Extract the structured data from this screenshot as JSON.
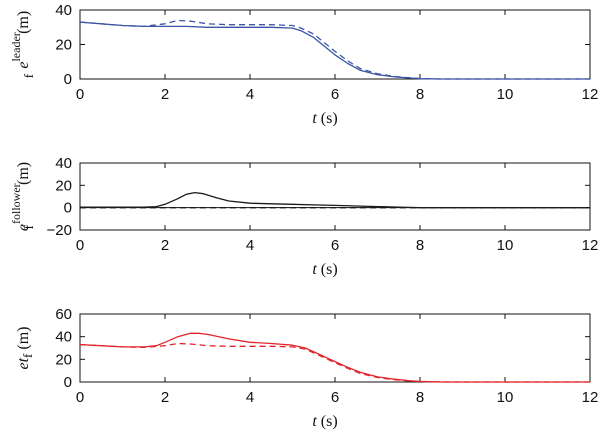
{
  "chart_data": [
    {
      "type": "line",
      "xlabel_var": "t",
      "xlabel_unit": "(s)",
      "ylabel_var": "e",
      "ylabel_sub": "f",
      "ylabel_sup": "leader",
      "ylabel_unit": "(m)",
      "xlim": [
        0,
        12
      ],
      "ylim": [
        0,
        40
      ],
      "xticks": [
        0,
        2,
        4,
        6,
        8,
        10,
        12
      ],
      "yticks": [
        0,
        20,
        40
      ],
      "series": [
        {
          "color": "#3c55a5",
          "dash": false,
          "x": [
            0,
            0.5,
            1,
            1.5,
            2,
            2.5,
            3,
            3.5,
            4,
            4.5,
            5,
            5.2,
            5.5,
            5.8,
            6,
            6.3,
            6.6,
            7,
            7.4,
            7.8,
            8,
            8.5,
            9,
            10,
            11,
            12
          ],
          "y": [
            33,
            32,
            31,
            30.5,
            30.5,
            30.5,
            30,
            30,
            30,
            30,
            29.5,
            28,
            24,
            18,
            14,
            9,
            5,
            2.5,
            1.2,
            0.5,
            0.2,
            0,
            0,
            0,
            0,
            0
          ]
        },
        {
          "color": "#3c55a5",
          "dash": true,
          "x": [
            0,
            0.5,
            1,
            1.5,
            2,
            2.3,
            2.6,
            3,
            3.5,
            4,
            4.5,
            5,
            5.2,
            5.5,
            5.8,
            6,
            6.3,
            6.6,
            7,
            7.4,
            7.8,
            8,
            8.5,
            9,
            10,
            11,
            12
          ],
          "y": [
            33,
            32,
            31,
            30.5,
            32,
            34,
            33.5,
            32,
            31.5,
            31.5,
            31.5,
            31,
            29.5,
            26,
            20,
            16,
            10.5,
            6,
            3,
            1.5,
            0.6,
            0.3,
            0,
            0,
            0,
            0,
            0
          ]
        }
      ]
    },
    {
      "type": "line",
      "xlabel_var": "t",
      "xlabel_unit": "(s)",
      "ylabel_var": "e",
      "ylabel_sub": "f",
      "ylabel_sup": "follower",
      "ylabel_unit": "(m)",
      "xlim": [
        0,
        12
      ],
      "ylim": [
        -20,
        40
      ],
      "xticks": [
        0,
        2,
        4,
        6,
        8,
        10,
        12
      ],
      "yticks": [
        -20,
        0,
        20,
        40
      ],
      "series": [
        {
          "color": "#1a1a1a",
          "dash": false,
          "x": [
            0,
            1,
            1.5,
            1.8,
            2,
            2.3,
            2.5,
            2.7,
            2.9,
            3.2,
            3.5,
            4,
            4.5,
            5,
            5.5,
            6,
            6.5,
            7,
            7.5,
            8,
            9,
            10,
            11,
            12
          ],
          "y": [
            0.5,
            0.5,
            0.5,
            1,
            3,
            8,
            12,
            13.5,
            12.5,
            9,
            6,
            4,
            3.5,
            3,
            2.5,
            2,
            1.5,
            1,
            0.5,
            0,
            0,
            0,
            0,
            0
          ]
        },
        {
          "color": "#1a1a1a",
          "dash": true,
          "x": [
            0,
            2,
            4,
            6,
            8,
            10,
            12
          ],
          "y": [
            0,
            0,
            0,
            0,
            0,
            0,
            0
          ]
        }
      ]
    },
    {
      "type": "line",
      "xlabel_var": "t",
      "xlabel_unit": "(s)",
      "ylabel_var": "e",
      "ylabel_sub": "f",
      "ylabel_unit": "(m)",
      "xlim": [
        0,
        12
      ],
      "ylim": [
        0,
        60
      ],
      "xticks": [
        0,
        2,
        4,
        6,
        8,
        10,
        12
      ],
      "yticks": [
        0,
        20,
        40,
        60
      ],
      "series": [
        {
          "color": "#e3242b",
          "dash": false,
          "x": [
            0,
            0.5,
            1,
            1.5,
            1.8,
            2,
            2.3,
            2.6,
            2.8,
            3,
            3.5,
            4,
            4.5,
            5,
            5.3,
            5.6,
            6,
            6.3,
            6.6,
            7,
            7.4,
            7.8,
            8,
            8.5,
            9,
            10,
            11,
            12
          ],
          "y": [
            33,
            32,
            31,
            31,
            32,
            35,
            40,
            43,
            43,
            42,
            38,
            35,
            34,
            32.5,
            30,
            25,
            18,
            13,
            8.5,
            4.5,
            2.5,
            1,
            0.5,
            0,
            0,
            0,
            0,
            0
          ]
        },
        {
          "color": "#e3242b",
          "dash": true,
          "x": [
            0,
            0.5,
            1,
            1.5,
            2,
            2.3,
            2.6,
            3,
            3.5,
            4,
            4.5,
            5,
            5.3,
            5.6,
            6,
            6.3,
            6.6,
            7,
            7.4,
            7.8,
            8,
            8.5,
            9,
            10,
            11,
            12
          ],
          "y": [
            33,
            32,
            31,
            30.5,
            32,
            34,
            33.5,
            32,
            31.5,
            31.5,
            31.5,
            31,
            29,
            24,
            17,
            12,
            7.5,
            4,
            2,
            0.8,
            0.4,
            0,
            0,
            0,
            0,
            0
          ]
        }
      ]
    }
  ]
}
